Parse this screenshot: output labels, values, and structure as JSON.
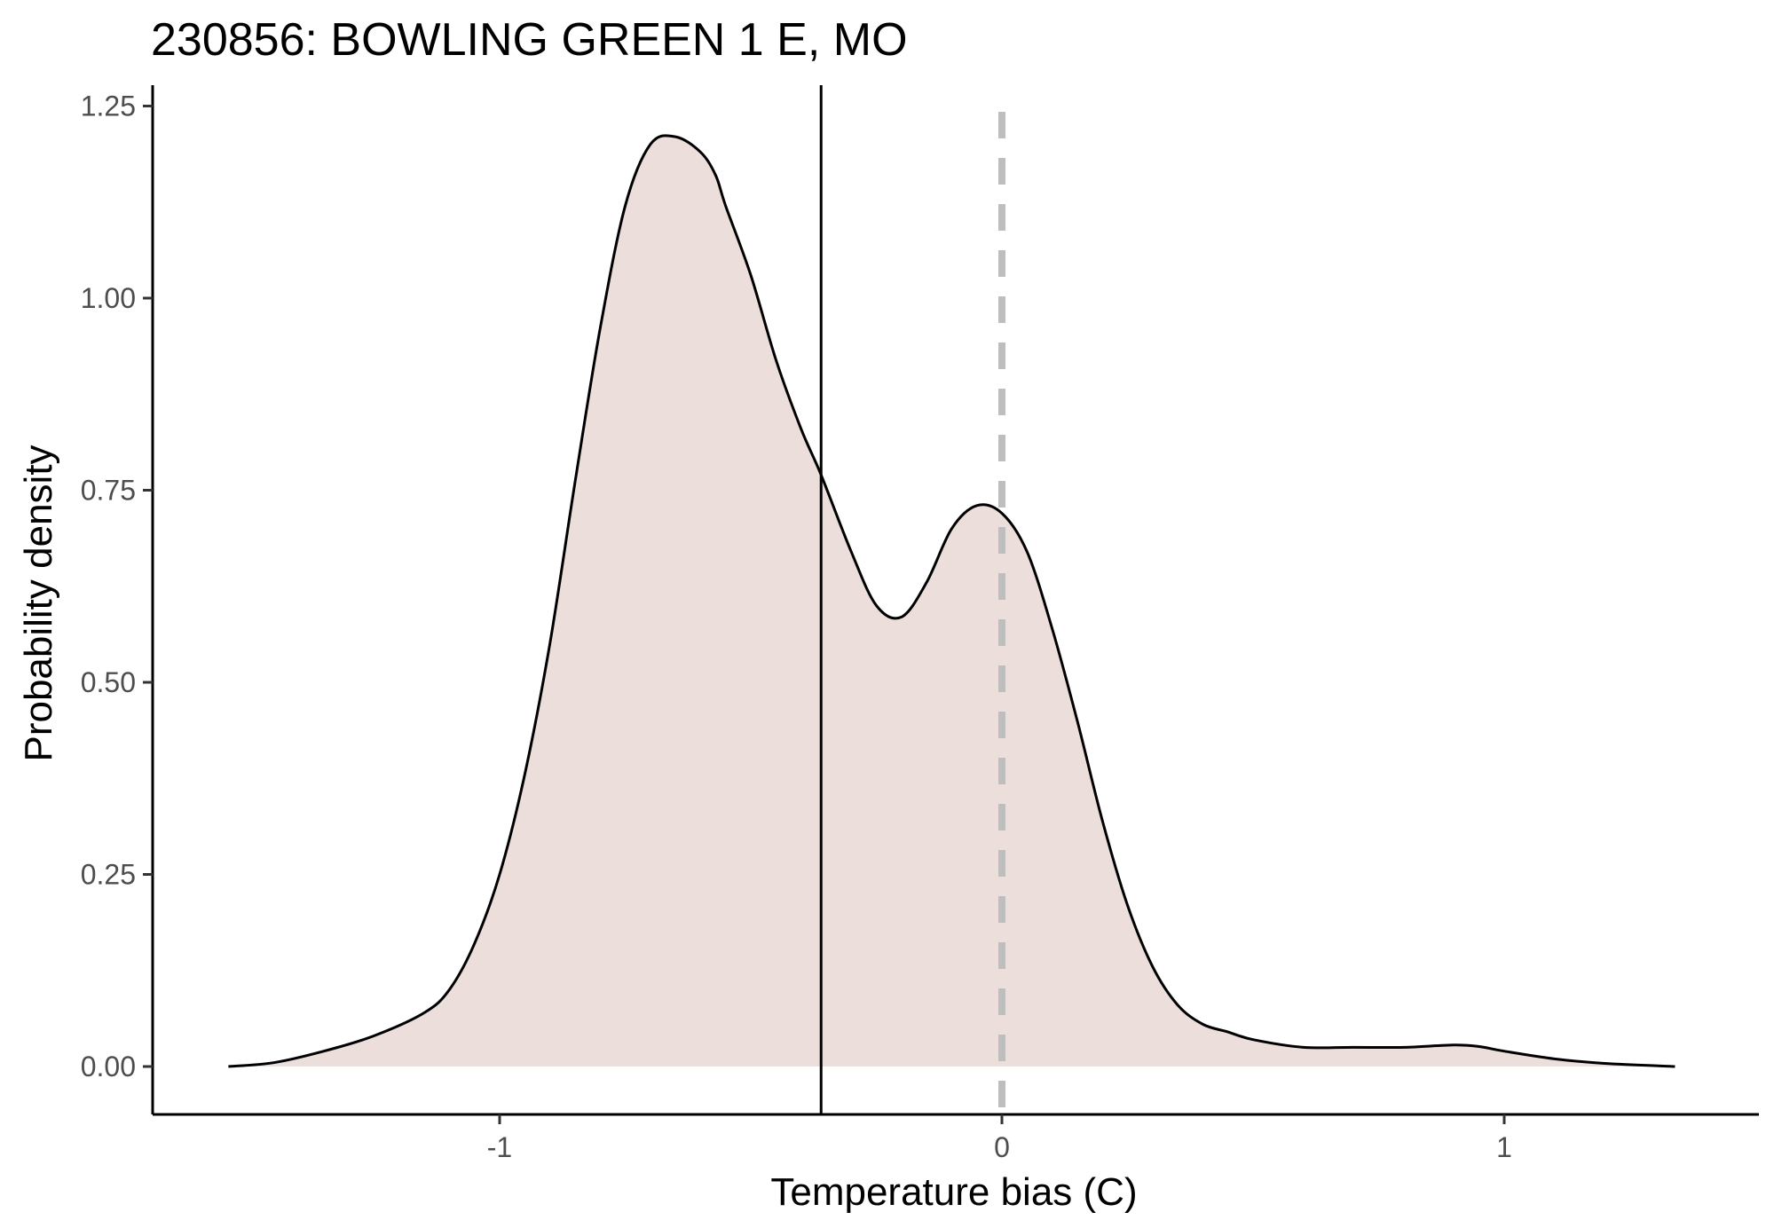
{
  "chart_data": {
    "type": "area",
    "title": "230856: BOWLING GREEN 1 E, MO",
    "xlabel": "Temperature bias (C)",
    "ylabel": "Probability density",
    "xlim": [
      -1.6,
      1.5
    ],
    "ylim": [
      -0.065,
      1.28
    ],
    "x_ticks": [
      -1,
      0,
      1
    ],
    "x_tick_labels": [
      "-1",
      "0",
      "1"
    ],
    "y_ticks": [
      0,
      0.25,
      0.5,
      0.75,
      1.0,
      1.25
    ],
    "y_tick_labels": [
      "0.00",
      "0.25",
      "0.50",
      "0.75",
      "1.00",
      "1.25"
    ],
    "grid": false,
    "legend": "none",
    "series": [
      {
        "x": [
          -1.54,
          -1.45,
          -1.35,
          -1.25,
          -1.15,
          -1.1,
          -1.05,
          -1.0,
          -0.95,
          -0.9,
          -0.85,
          -0.8,
          -0.75,
          -0.7,
          -0.65,
          -0.6,
          -0.57,
          -0.55,
          -0.5,
          -0.45,
          -0.4,
          -0.36,
          -0.3,
          -0.25,
          -0.2,
          -0.15,
          -0.1,
          -0.05,
          0.0,
          0.05,
          0.1,
          0.15,
          0.2,
          0.25,
          0.3,
          0.35,
          0.4,
          0.45,
          0.5,
          0.6,
          0.7,
          0.8,
          0.9,
          0.95,
          1.0,
          1.1,
          1.2,
          1.34
        ],
        "y": [
          0.0,
          0.005,
          0.02,
          0.04,
          0.07,
          0.1,
          0.16,
          0.25,
          0.38,
          0.55,
          0.76,
          0.96,
          1.12,
          1.2,
          1.21,
          1.19,
          1.16,
          1.12,
          1.03,
          0.92,
          0.83,
          0.77,
          0.67,
          0.6,
          0.585,
          0.63,
          0.7,
          0.73,
          0.72,
          0.67,
          0.57,
          0.45,
          0.32,
          0.21,
          0.13,
          0.08,
          0.055,
          0.045,
          0.035,
          0.025,
          0.025,
          0.025,
          0.028,
          0.026,
          0.02,
          0.01,
          0.004,
          0.0
        ]
      }
    ],
    "vlines": [
      {
        "x": -0.36,
        "style": "solid",
        "color": "#000000"
      },
      {
        "x": 0.0,
        "style": "dashed",
        "color": "#bebebe"
      }
    ],
    "colors": {
      "fill": "#ecdeda",
      "line": "#000000",
      "axis": "#000000",
      "tick_label": "#4d4d4d"
    }
  }
}
